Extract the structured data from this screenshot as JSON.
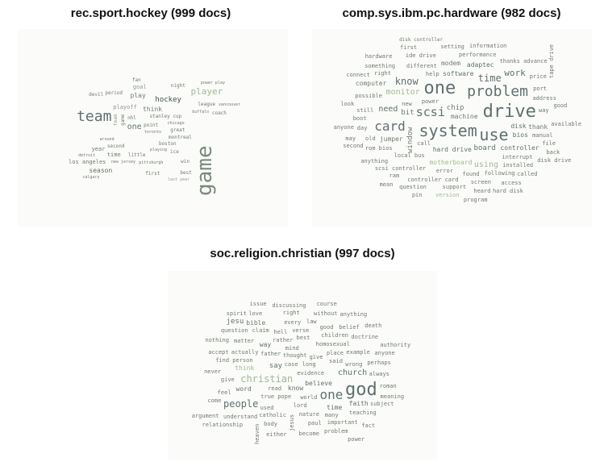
{
  "panels": [
    {
      "title": "rec.sport.hockey (999 docs)",
      "words": [
        [
          "game",
          26,
          "v",
          "#7a8a7e"
        ],
        [
          "team",
          18,
          "h",
          "#5f7070"
        ],
        [
          "hockey",
          9,
          "h",
          "#3f5050"
        ],
        [
          "player",
          11,
          "h",
          "#a0b890"
        ],
        [
          "season",
          8,
          "h",
          "#667060"
        ],
        [
          "one",
          10,
          "h",
          "#607070"
        ],
        [
          "play",
          8,
          "h",
          "#707a70"
        ],
        [
          "think",
          8,
          "h",
          "#707a70"
        ],
        [
          "year",
          7,
          "h",
          "#707a70"
        ],
        [
          "playoff",
          7,
          "h",
          "#909890"
        ],
        [
          "los angeles",
          7,
          "h",
          "#707a70"
        ],
        [
          "stanley cup",
          6,
          "h",
          "#707a70"
        ],
        [
          "montreal",
          6,
          "h",
          "#707a70"
        ],
        [
          "devil",
          6,
          "h",
          "#707a70"
        ],
        [
          "time",
          7,
          "h",
          "#707a70"
        ],
        [
          "fan",
          6,
          "h",
          "#707a70"
        ],
        [
          "coach",
          6,
          "h",
          "#707a70"
        ],
        [
          "boston",
          6,
          "h",
          "#707a70"
        ],
        [
          "league",
          6,
          "h",
          "#707a70"
        ],
        [
          "nhl",
          6,
          "h",
          "#707a70"
        ],
        [
          "little",
          6,
          "h",
          "#707a70"
        ],
        [
          "point",
          6,
          "h",
          "#707a70"
        ],
        [
          "goal",
          7,
          "h",
          "#909890"
        ],
        [
          "period",
          6,
          "h",
          "#707a70"
        ],
        [
          "new jersey",
          5,
          "h",
          "#707a70"
        ],
        [
          "vancouver",
          5,
          "h",
          "#707a70"
        ],
        [
          "chicago",
          5,
          "h",
          "#707a70"
        ],
        [
          "calgary",
          5,
          "h",
          "#707a70"
        ],
        [
          "night",
          6,
          "h",
          "#707a70"
        ],
        [
          "second",
          6,
          "h",
          "#707a70"
        ],
        [
          "best",
          6,
          "h",
          "#707a70"
        ],
        [
          "win",
          6,
          "h",
          "#707a70"
        ],
        [
          "great",
          6,
          "h",
          "#707a70"
        ],
        [
          "pittsburgh",
          5,
          "h",
          "#707a70"
        ],
        [
          "toronto",
          5,
          "h",
          "#707a70"
        ],
        [
          "detroit",
          5,
          "h",
          "#707a70"
        ],
        [
          "buffalo",
          5,
          "h",
          "#707a70"
        ],
        [
          "power play",
          5,
          "h",
          "#707a70"
        ],
        [
          "playing",
          5,
          "h",
          "#707a70"
        ],
        [
          "first",
          6,
          "h",
          "#707a70"
        ],
        [
          "last year",
          5,
          "h",
          "#909890"
        ],
        [
          "around",
          5,
          "h",
          "#707a70"
        ],
        [
          "game",
          6,
          "v",
          "#707a70"
        ],
        [
          "team",
          6,
          "v",
          "#909890"
        ],
        [
          "ice",
          6,
          "h",
          "#707a70"
        ]
      ]
    },
    {
      "title": "comp.sys.ibm.pc.hardware (982 docs)",
      "words": [
        [
          "drive",
          22,
          "h",
          "#5f7070"
        ],
        [
          "system",
          20,
          "h",
          "#5f7070"
        ],
        [
          "problem",
          18,
          "h",
          "#5f7070"
        ],
        [
          "one",
          22,
          "h",
          "#5f7070"
        ],
        [
          "use",
          20,
          "h",
          "#5f7070"
        ],
        [
          "card",
          16,
          "h",
          "#5f7070"
        ],
        [
          "scsi",
          15,
          "h",
          "#5f7070"
        ],
        [
          "know",
          12,
          "h",
          "#5f7070"
        ],
        [
          "time",
          12,
          "h",
          "#5f7070"
        ],
        [
          "work",
          11,
          "h",
          "#5f7070"
        ],
        [
          "need",
          10,
          "h",
          "#5f7070"
        ],
        [
          "monitor",
          10,
          "h",
          "#a0b890"
        ],
        [
          "board",
          9,
          "h",
          "#5f7070"
        ],
        [
          "using",
          10,
          "h",
          "#a0b890"
        ],
        [
          "disk",
          8,
          "h",
          "#5f7070"
        ],
        [
          "controller",
          8,
          "h",
          "#5f7070"
        ],
        [
          "hard drive",
          8,
          "h",
          "#5f7070"
        ],
        [
          "bios",
          8,
          "h",
          "#5f7070"
        ],
        [
          "software",
          8,
          "h",
          "#5f7070"
        ],
        [
          "motherboard",
          8,
          "h",
          "#a0b890"
        ],
        [
          "adaptec",
          8,
          "h",
          "#5f7070"
        ],
        [
          "computer",
          8,
          "h",
          "#707a70"
        ],
        [
          "machine",
          8,
          "h",
          "#707a70"
        ],
        [
          "thank",
          8,
          "h",
          "#707a70"
        ],
        [
          "window",
          9,
          "v",
          "#707a70"
        ],
        [
          "bit",
          9,
          "h",
          "#707a70"
        ],
        [
          "modem",
          8,
          "h",
          "#707a70"
        ],
        [
          "jumper",
          8,
          "h",
          "#707a70"
        ],
        [
          "chip",
          9,
          "h",
          "#707a70"
        ],
        [
          "error",
          7,
          "h",
          "#707a70"
        ],
        [
          "power",
          7,
          "h",
          "#707a70"
        ],
        [
          "local bus",
          7,
          "h",
          "#707a70"
        ],
        [
          "interrupt",
          7,
          "h",
          "#707a70"
        ],
        [
          "following",
          7,
          "h",
          "#707a70"
        ],
        [
          "performance",
          7,
          "h",
          "#707a70"
        ],
        [
          "manual",
          7,
          "h",
          "#707a70"
        ],
        [
          "scsi controller",
          7,
          "h",
          "#707a70"
        ],
        [
          "controller card",
          7,
          "h",
          "#707a70"
        ],
        [
          "disk controller",
          6,
          "h",
          "#707a70"
        ],
        [
          "thanks advance",
          7,
          "h",
          "#707a70"
        ],
        [
          "possible",
          7,
          "h",
          "#707a70"
        ],
        [
          "file",
          7,
          "h",
          "#707a70"
        ],
        [
          "still",
          7,
          "h",
          "#707a70"
        ],
        [
          "call",
          7,
          "h",
          "#707a70"
        ],
        [
          "different",
          7,
          "h",
          "#707a70"
        ],
        [
          "ide drive",
          7,
          "h",
          "#707a70"
        ],
        [
          "installed",
          7,
          "h",
          "#707a70"
        ],
        [
          "port",
          7,
          "h",
          "#707a70"
        ],
        [
          "rom bios",
          7,
          "h",
          "#707a70"
        ],
        [
          "address",
          7,
          "h",
          "#707a70"
        ],
        [
          "screen",
          7,
          "h",
          "#707a70"
        ],
        [
          "anything",
          7,
          "h",
          "#707a70"
        ],
        [
          "right",
          7,
          "h",
          "#707a70"
        ],
        [
          "support",
          7,
          "h",
          "#707a70"
        ],
        [
          "something",
          7,
          "h",
          "#707a70"
        ],
        [
          "setting",
          7,
          "h",
          "#707a70"
        ],
        [
          "price",
          7,
          "h",
          "#707a70"
        ],
        [
          "access",
          7,
          "h",
          "#707a70"
        ],
        [
          "hardware",
          7,
          "h",
          "#707a70"
        ],
        [
          "boot",
          7,
          "h",
          "#707a70"
        ],
        [
          "day",
          7,
          "h",
          "#707a70"
        ],
        [
          "heard",
          7,
          "h",
          "#707a70"
        ],
        [
          "question",
          7,
          "h",
          "#707a70"
        ],
        [
          "found",
          7,
          "h",
          "#707a70"
        ],
        [
          "way",
          7,
          "h",
          "#707a70"
        ],
        [
          "ram",
          7,
          "h",
          "#707a70"
        ],
        [
          "available",
          7,
          "h",
          "#707a70"
        ],
        [
          "program",
          7,
          "h",
          "#707a70"
        ],
        [
          "version",
          7,
          "h",
          "#a0b890"
        ],
        [
          "disk drive",
          7,
          "h",
          "#707a70"
        ],
        [
          "new",
          7,
          "h",
          "#707a70"
        ],
        [
          "old",
          7,
          "h",
          "#707a70"
        ],
        [
          "second",
          7,
          "h",
          "#707a70"
        ],
        [
          "help",
          7,
          "h",
          "#707a70"
        ],
        [
          "anyone",
          7,
          "h",
          "#707a70"
        ],
        [
          "good",
          7,
          "h",
          "#707a70"
        ],
        [
          "may",
          7,
          "h",
          "#707a70"
        ],
        [
          "back",
          7,
          "h",
          "#707a70"
        ],
        [
          "hard disk",
          7,
          "h",
          "#707a70"
        ],
        [
          "pin",
          7,
          "h",
          "#707a70"
        ],
        [
          "called",
          7,
          "h",
          "#707a70"
        ],
        [
          "tape drive",
          7,
          "v",
          "#707a70"
        ],
        [
          "information",
          7,
          "h",
          "#707a70"
        ],
        [
          "mean",
          7,
          "h",
          "#707a70"
        ],
        [
          "look",
          7,
          "h",
          "#707a70"
        ],
        [
          "first",
          7,
          "h",
          "#707a70"
        ],
        [
          "connect",
          7,
          "h",
          "#707a70"
        ]
      ]
    },
    {
      "title": "soc.religion.christian (997 docs)",
      "words": [
        [
          "god",
          22,
          "h",
          "#5f7070"
        ],
        [
          "one",
          16,
          "h",
          "#5f7070"
        ],
        [
          "people",
          12,
          "h",
          "#5f7070"
        ],
        [
          "christian",
          12,
          "h",
          "#a0b890"
        ],
        [
          "church",
          10,
          "h",
          "#5f7070"
        ],
        [
          "jesu",
          9,
          "h",
          "#5f7070"
        ],
        [
          "say",
          9,
          "h",
          "#5f7070"
        ],
        [
          "faith",
          8,
          "h",
          "#5f7070"
        ],
        [
          "believe",
          8,
          "h",
          "#5f7070"
        ],
        [
          "know",
          8,
          "h",
          "#5f7070"
        ],
        [
          "word",
          8,
          "h",
          "#5f7070"
        ],
        [
          "way",
          8,
          "h",
          "#5f7070"
        ],
        [
          "think",
          8,
          "h",
          "#a0b890"
        ],
        [
          "time",
          8,
          "h",
          "#5f7070"
        ],
        [
          "bible",
          8,
          "h",
          "#707a70"
        ],
        [
          "thought",
          7,
          "h",
          "#707a70"
        ],
        [
          "mind",
          7,
          "h",
          "#707a70"
        ],
        [
          "place",
          7,
          "h",
          "#707a70"
        ],
        [
          "wrong",
          7,
          "h",
          "#707a70"
        ],
        [
          "read",
          7,
          "h",
          "#707a70"
        ],
        [
          "case",
          7,
          "h",
          "#707a70"
        ],
        [
          "example",
          7,
          "h",
          "#707a70"
        ],
        [
          "many",
          7,
          "h",
          "#707a70"
        ],
        [
          "used",
          7,
          "h",
          "#707a70"
        ],
        [
          "best",
          7,
          "h",
          "#707a70"
        ],
        [
          "teaching",
          7,
          "h",
          "#707a70"
        ],
        [
          "important",
          7,
          "h",
          "#707a70"
        ],
        [
          "father",
          7,
          "h",
          "#707a70"
        ],
        [
          "rather",
          7,
          "h",
          "#707a70"
        ],
        [
          "pope",
          7,
          "h",
          "#707a70"
        ],
        [
          "verse",
          7,
          "h",
          "#707a70"
        ],
        [
          "every",
          7,
          "h",
          "#707a70"
        ],
        [
          "true",
          7,
          "h",
          "#707a70"
        ],
        [
          "lord",
          7,
          "h",
          "#707a70"
        ],
        [
          "hell",
          7,
          "h",
          "#707a70"
        ],
        [
          "said",
          7,
          "h",
          "#707a70"
        ],
        [
          "law",
          7,
          "h",
          "#707a70"
        ],
        [
          "right",
          7,
          "h",
          "#707a70"
        ],
        [
          "catholic",
          7,
          "h",
          "#707a70"
        ],
        [
          "feel",
          7,
          "h",
          "#707a70"
        ],
        [
          "love",
          7,
          "h",
          "#707a70"
        ],
        [
          "find person",
          7,
          "h",
          "#707a70"
        ],
        [
          "evidence",
          7,
          "h",
          "#707a70"
        ],
        [
          "homosexual",
          7,
          "h",
          "#707a70"
        ],
        [
          "world",
          7,
          "h",
          "#707a70"
        ],
        [
          "always",
          7,
          "h",
          "#707a70"
        ],
        [
          "nature",
          7,
          "h",
          "#707a70"
        ],
        [
          "understand",
          7,
          "h",
          "#707a70"
        ],
        [
          "children",
          7,
          "h",
          "#707a70"
        ],
        [
          "problem",
          7,
          "h",
          "#707a70"
        ],
        [
          "doctrine",
          7,
          "h",
          "#707a70"
        ],
        [
          "claim",
          7,
          "h",
          "#707a70"
        ],
        [
          "perhaps",
          7,
          "h",
          "#707a70"
        ],
        [
          "discussing",
          7,
          "h",
          "#707a70"
        ],
        [
          "belief",
          7,
          "h",
          "#707a70"
        ],
        [
          "matter",
          7,
          "h",
          "#707a70"
        ],
        [
          "subject",
          7,
          "h",
          "#707a70"
        ],
        [
          "come",
          7,
          "h",
          "#707a70"
        ],
        [
          "body",
          7,
          "h",
          "#707a70"
        ],
        [
          "paul",
          7,
          "h",
          "#707a70"
        ],
        [
          "roman",
          7,
          "h",
          "#707a70"
        ],
        [
          "give",
          7,
          "h",
          "#707a70"
        ],
        [
          "actually",
          7,
          "h",
          "#707a70"
        ],
        [
          "anyone",
          7,
          "h",
          "#707a70"
        ],
        [
          "never",
          7,
          "h",
          "#707a70"
        ],
        [
          "long",
          7,
          "h",
          "#707a70"
        ],
        [
          "without",
          7,
          "h",
          "#707a70"
        ],
        [
          "give",
          7,
          "h",
          "#707a70"
        ],
        [
          "question",
          7,
          "h",
          "#707a70"
        ],
        [
          "jesus",
          7,
          "v",
          "#707a70"
        ],
        [
          "heaven",
          7,
          "v",
          "#707a70"
        ],
        [
          "authority",
          7,
          "h",
          "#707a70"
        ],
        [
          "anything",
          7,
          "h",
          "#707a70"
        ],
        [
          "fact",
          7,
          "h",
          "#707a70"
        ],
        [
          "accept",
          7,
          "h",
          "#707a70"
        ],
        [
          "become",
          7,
          "h",
          "#707a70"
        ],
        [
          "nothing",
          7,
          "h",
          "#707a70"
        ],
        [
          "meaning",
          7,
          "h",
          "#707a70"
        ],
        [
          "spirit",
          7,
          "h",
          "#707a70"
        ],
        [
          "relationship",
          7,
          "h",
          "#707a70"
        ],
        [
          "argument",
          7,
          "h",
          "#707a70"
        ],
        [
          "death",
          7,
          "h",
          "#707a70"
        ],
        [
          "good",
          7,
          "h",
          "#707a70"
        ],
        [
          "course",
          7,
          "h",
          "#707a70"
        ],
        [
          "power",
          7,
          "h",
          "#707a70"
        ],
        [
          "either",
          7,
          "h",
          "#707a70"
        ],
        [
          "issue",
          7,
          "h",
          "#707a70"
        ]
      ]
    }
  ]
}
